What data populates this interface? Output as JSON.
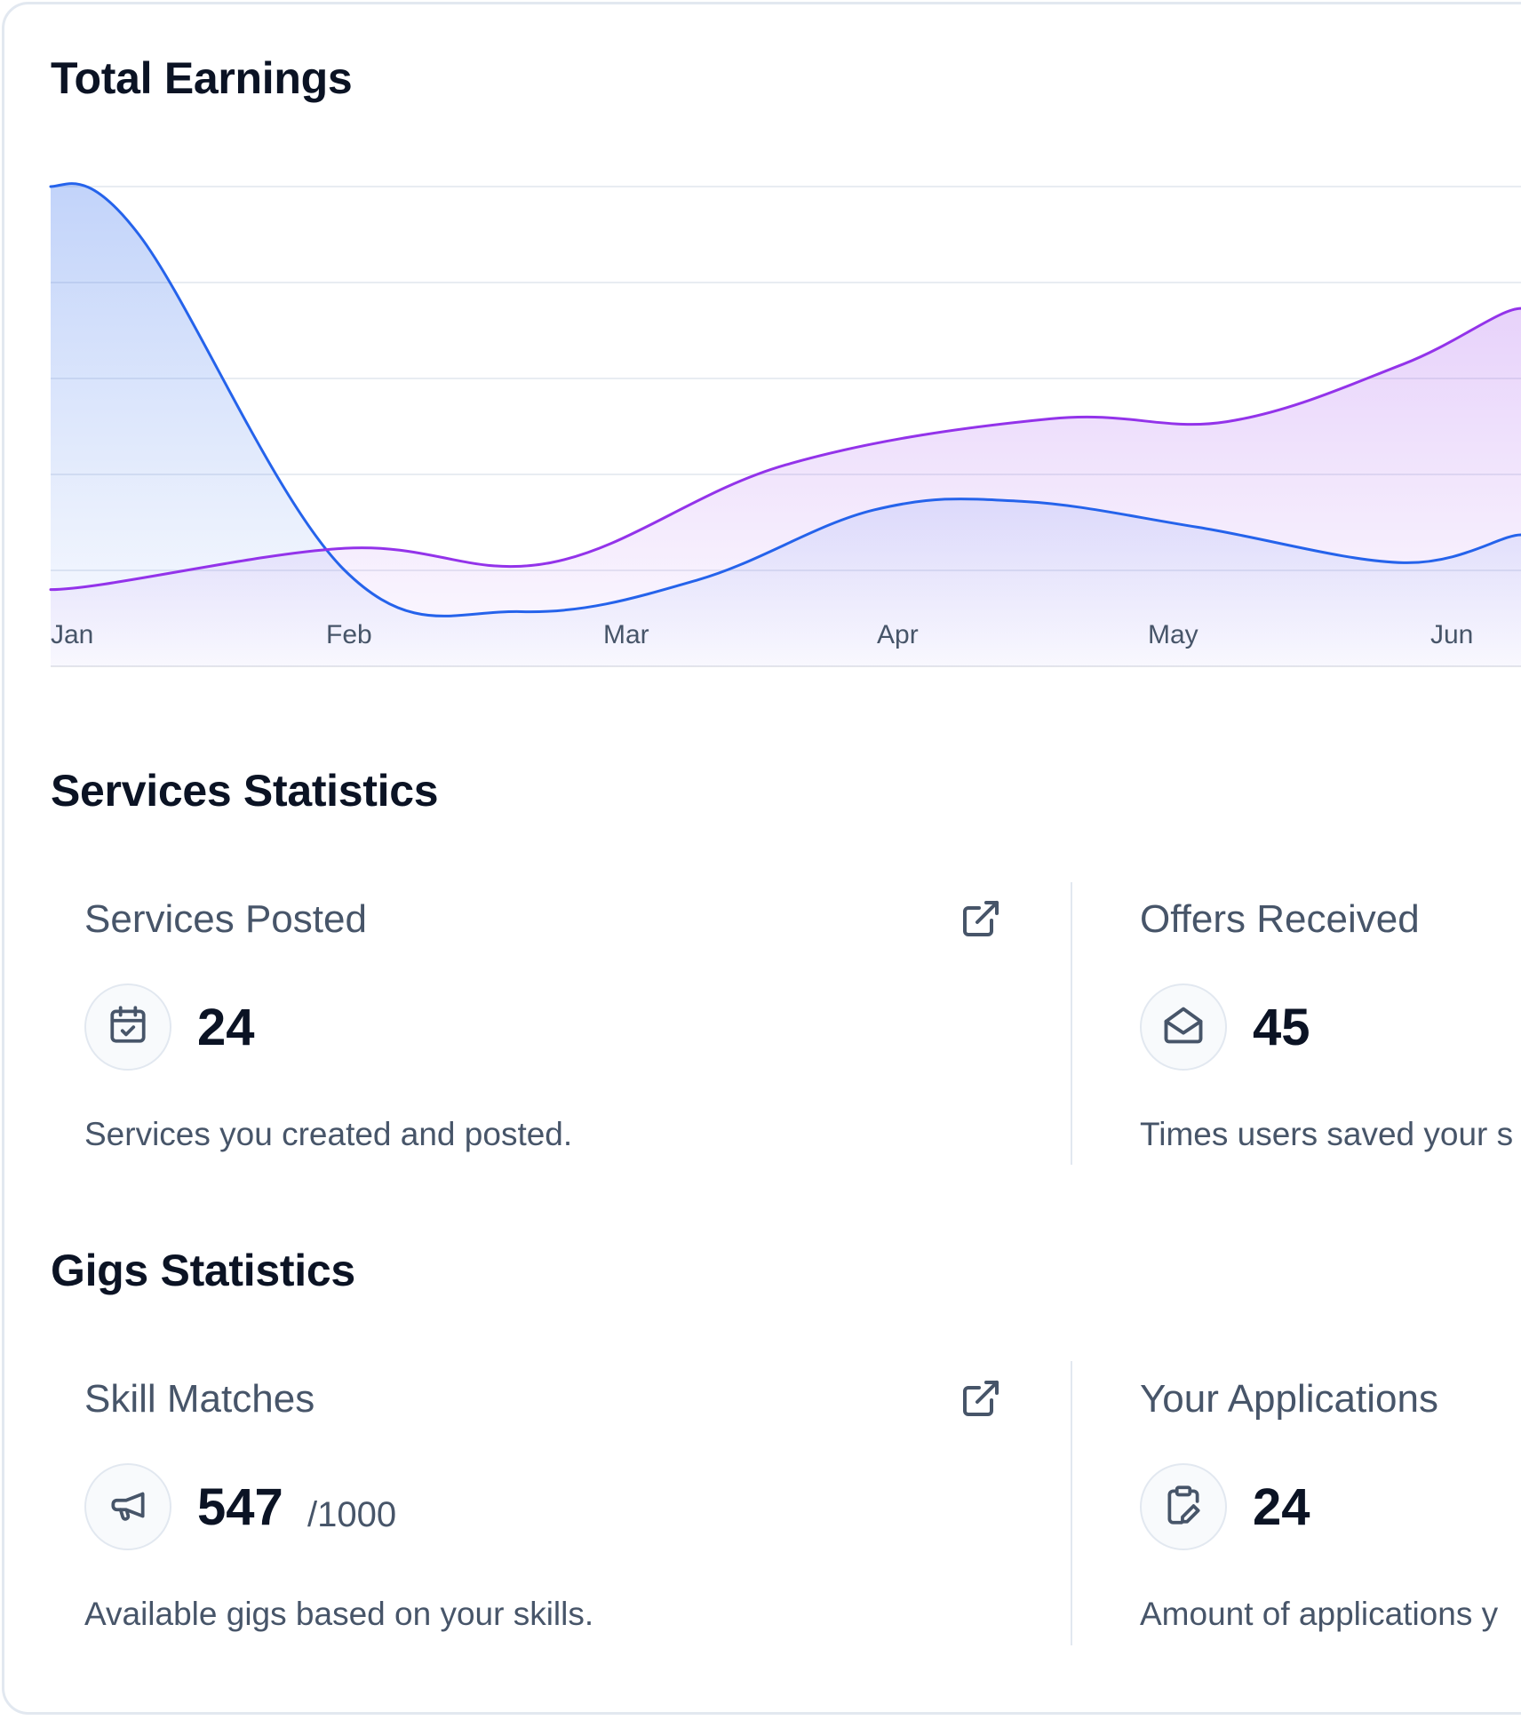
{
  "earnings": {
    "title": "Total Earnings"
  },
  "chart_data": {
    "type": "area",
    "title": "Total Earnings",
    "categories": [
      "Jan",
      "Feb",
      "Mar",
      "Apr",
      "May",
      "Jun"
    ],
    "x": [
      "Jan",
      "Feb",
      "Mar",
      "Apr",
      "May",
      "Jun"
    ],
    "ylim": [
      0,
      5
    ],
    "grid": true,
    "legend": "none",
    "series": [
      {
        "color": "#2563eb",
        "points": [
          [
            0,
            5.0
          ],
          [
            0.3,
            4.5
          ],
          [
            1.0,
            1.0
          ],
          [
            1.6,
            0.57
          ],
          [
            2.2,
            0.9
          ],
          [
            2.8,
            1.63
          ],
          [
            3.3,
            1.72
          ],
          [
            3.9,
            1.45
          ],
          [
            4.6,
            1.08
          ],
          [
            5.0,
            1.37
          ]
        ]
      },
      {
        "color": "#9333ea",
        "points": [
          [
            0,
            0.8
          ],
          [
            1.0,
            1.23
          ],
          [
            1.7,
            1.08
          ],
          [
            2.5,
            2.1
          ],
          [
            3.4,
            2.58
          ],
          [
            4.0,
            2.55
          ],
          [
            4.6,
            3.15
          ],
          [
            5.0,
            3.73
          ]
        ]
      }
    ]
  },
  "services": {
    "title": "Services Statistics",
    "left": {
      "label": "Services Posted",
      "value": "24",
      "desc": "Services you created and posted."
    },
    "right": {
      "label": "Offers Received",
      "value": "45",
      "desc": "Times users saved your s"
    }
  },
  "gigs": {
    "title": "Gigs Statistics",
    "left": {
      "label": "Skill Matches",
      "value": "547",
      "total": "/1000",
      "desc": "Available gigs based on your skills."
    },
    "right": {
      "label": "Your Applications",
      "value": "24",
      "desc": "Amount of applications y"
    }
  },
  "icons": {
    "services_posted": "calendar-check-icon",
    "offers_received": "mail-open-icon",
    "skill_matches": "megaphone-icon",
    "your_applications": "clipboard-edit-icon",
    "external_link": "external-link-icon"
  },
  "colors": {
    "series_blue": "#2563eb",
    "series_purple": "#9333ea",
    "heading": "#0b1324",
    "muted_text": "#475569",
    "border": "#e2e8f0"
  }
}
